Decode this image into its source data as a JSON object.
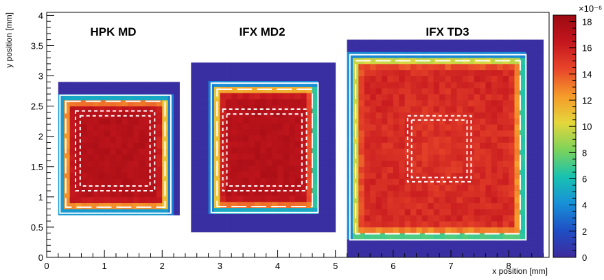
{
  "chart_data": {
    "type": "heatmap",
    "xlabel": "x position [mm]",
    "ylabel": "y position [mm]",
    "xlim": [
      0,
      8.7
    ],
    "ylim": [
      0,
      4.05
    ],
    "x_ticks": [
      "0",
      "1",
      "2",
      "3",
      "4",
      "5",
      "6",
      "7",
      "8"
    ],
    "y_ticks": [
      "0",
      "0.5",
      "1",
      "1.5",
      "2",
      "2.5",
      "3",
      "3.5",
      "4"
    ],
    "colorbar": {
      "min": 0,
      "max": 18.5,
      "exponent_label": "×10⁻⁶",
      "ticks": [
        "0",
        "2",
        "4",
        "6",
        "8",
        "10",
        "12",
        "14",
        "16",
        "18"
      ],
      "colormap": [
        "#3d2a9c",
        "#1f4fc4",
        "#1890d8",
        "#18c2b0",
        "#7dd35a",
        "#e5d63b",
        "#f59a2a",
        "#e8452a",
        "#c4161e",
        "#9c0a12"
      ]
    },
    "panels": [
      {
        "title": "HPK MD",
        "map_extent": {
          "x": [
            0.2,
            2.3
          ],
          "y": [
            0.7,
            2.86
          ]
        },
        "outer_box": {
          "x": [
            0.23,
            2.15
          ],
          "y": [
            0.73,
            2.68
          ]
        },
        "inner_dashed_outer": {
          "x": [
            0.5,
            1.87
          ],
          "y": [
            1.1,
            2.42
          ]
        },
        "inner_dashed_inner": {
          "x": [
            0.58,
            1.79
          ],
          "y": [
            1.18,
            2.34
          ]
        },
        "plateau_value": 17.2,
        "noise": 0.8,
        "falloff_width_mm": 0.1
      },
      {
        "title": "IFX MD2",
        "map_extent": {
          "x": [
            2.5,
            5.0
          ],
          "y": [
            0.42,
            3.13
          ]
        },
        "outer_box": {
          "x": [
            2.85,
            4.7
          ],
          "y": [
            0.74,
            2.88
          ]
        },
        "inner_dashed_outer": {
          "x": [
            3.05,
            4.5
          ],
          "y": [
            1.1,
            2.45
          ]
        },
        "inner_dashed_inner": {
          "x": [
            3.12,
            4.42
          ],
          "y": [
            1.18,
            2.37
          ]
        },
        "plateau_value": 17.2,
        "noise": 0.8,
        "falloff_width_mm": 0.1
      },
      {
        "title": "IFX TD3",
        "map_extent": {
          "x": [
            5.2,
            8.6
          ],
          "y": [
            0,
            3.52
          ]
        },
        "outer_box": {
          "x": [
            5.25,
            8.3
          ],
          "y": [
            0.29,
            3.35
          ]
        },
        "inner_dashed_outer": {
          "x": [
            6.25,
            7.35
          ],
          "y": [
            1.25,
            2.34
          ]
        },
        "inner_dashed_inner": {
          "x": [
            6.32,
            7.28
          ],
          "y": [
            1.32,
            2.27
          ]
        },
        "plateau_value": 15.8,
        "noise": 1.2,
        "falloff_width_mm": 0.12
      }
    ]
  }
}
